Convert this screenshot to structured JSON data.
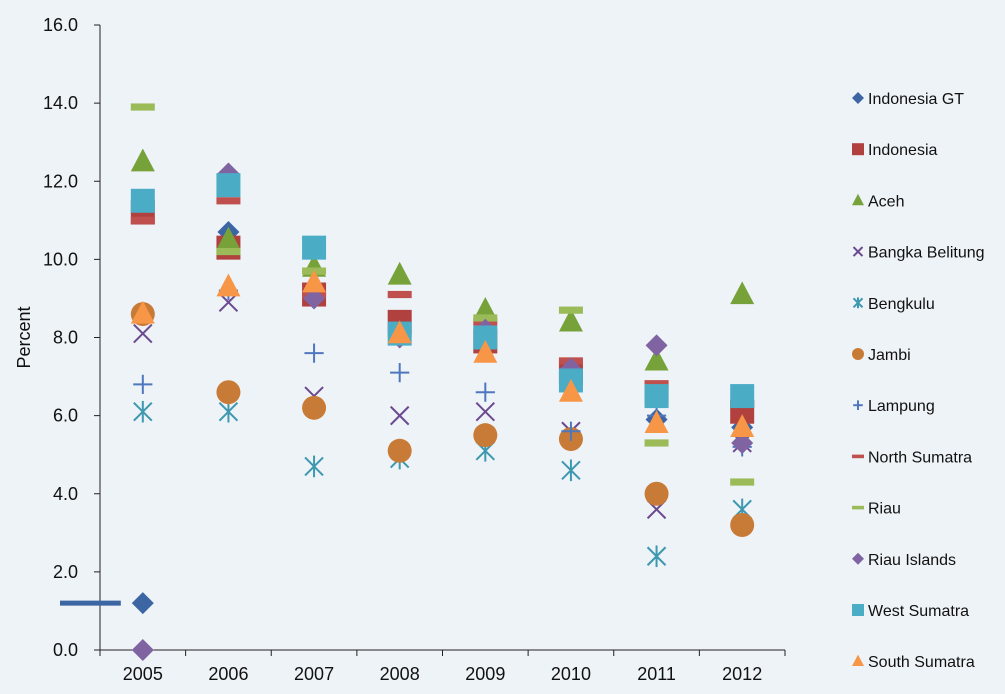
{
  "chart_data": {
    "type": "scatter",
    "title": "",
    "xlabel": "",
    "ylabel": "Percent",
    "ylim": [
      0,
      16
    ],
    "yticks": [
      "0.0",
      "2.0",
      "4.0",
      "6.0",
      "8.0",
      "10.0",
      "12.0",
      "14.0",
      "16.0"
    ],
    "categories": [
      "2005",
      "2006",
      "2007",
      "2008",
      "2009",
      "2010",
      "2011",
      "2012"
    ],
    "grid": false,
    "legend_position": "right",
    "series": [
      {
        "name": "Indonesia GT",
        "marker": "diamond",
        "color": "#3c65a3",
        "values": [
          1.2,
          10.7,
          9.2,
          8.1,
          7.9,
          7.0,
          5.9,
          5.7
        ]
      },
      {
        "name": "Indonesia",
        "marker": "square",
        "color": "#b0413e",
        "values": [
          11.2,
          10.3,
          9.1,
          8.4,
          7.9,
          7.1,
          6.6,
          6.1
        ]
      },
      {
        "name": "Aceh",
        "marker": "triangle",
        "color": "#77a23a",
        "values": [
          12.5,
          10.5,
          9.8,
          9.6,
          8.7,
          8.4,
          7.4,
          9.1
        ]
      },
      {
        "name": "Bangka Belitung",
        "marker": "x",
        "color": "#6b4a8f",
        "values": [
          8.1,
          8.9,
          6.5,
          6.0,
          6.1,
          5.6,
          3.6,
          5.3
        ]
      },
      {
        "name": "Bengkulu",
        "marker": "star",
        "color": "#3d98b0",
        "values": [
          6.1,
          6.1,
          4.7,
          4.9,
          5.1,
          4.6,
          2.4,
          3.6
        ]
      },
      {
        "name": "Jambi",
        "marker": "circle",
        "color": "#c87b36",
        "values": [
          8.6,
          6.6,
          6.2,
          5.1,
          5.5,
          5.4,
          4.0,
          3.2
        ]
      },
      {
        "name": "Lampung",
        "marker": "plus",
        "color": "#4f77bd",
        "values": [
          6.8,
          9.2,
          7.6,
          7.1,
          6.6,
          5.6,
          6.0,
          5.2
        ]
      },
      {
        "name": "North Sumatra",
        "marker": "dash",
        "color": "#c0504d",
        "values": [
          11.0,
          11.5,
          9.1,
          9.1,
          8.4,
          7.4,
          6.8,
          6.3
        ]
      },
      {
        "name": "Riau",
        "marker": "dash",
        "color": "#9bbb59",
        "values": [
          13.9,
          10.2,
          9.7,
          8.1,
          8.5,
          8.7,
          5.3,
          4.3
        ]
      },
      {
        "name": "Riau Islands",
        "marker": "diamond",
        "color": "#8064a2",
        "values": [
          0.0,
          12.2,
          9.0,
          8.0,
          8.2,
          7.2,
          7.8,
          5.3
        ]
      },
      {
        "name": "West Sumatra",
        "marker": "square",
        "color": "#4bacc6",
        "values": [
          11.5,
          11.9,
          10.3,
          8.1,
          8.0,
          6.9,
          6.5,
          6.5
        ]
      },
      {
        "name": "South Sumatra",
        "marker": "triangle",
        "color": "#f79646",
        "values": [
          8.6,
          9.3,
          9.4,
          8.1,
          7.6,
          6.6,
          5.8,
          5.7
        ]
      }
    ],
    "annotations": [
      {
        "series": "Indonesia GT",
        "category": "2005",
        "shape": "horizontal-bar",
        "from": "start",
        "value": 1.2
      }
    ]
  }
}
